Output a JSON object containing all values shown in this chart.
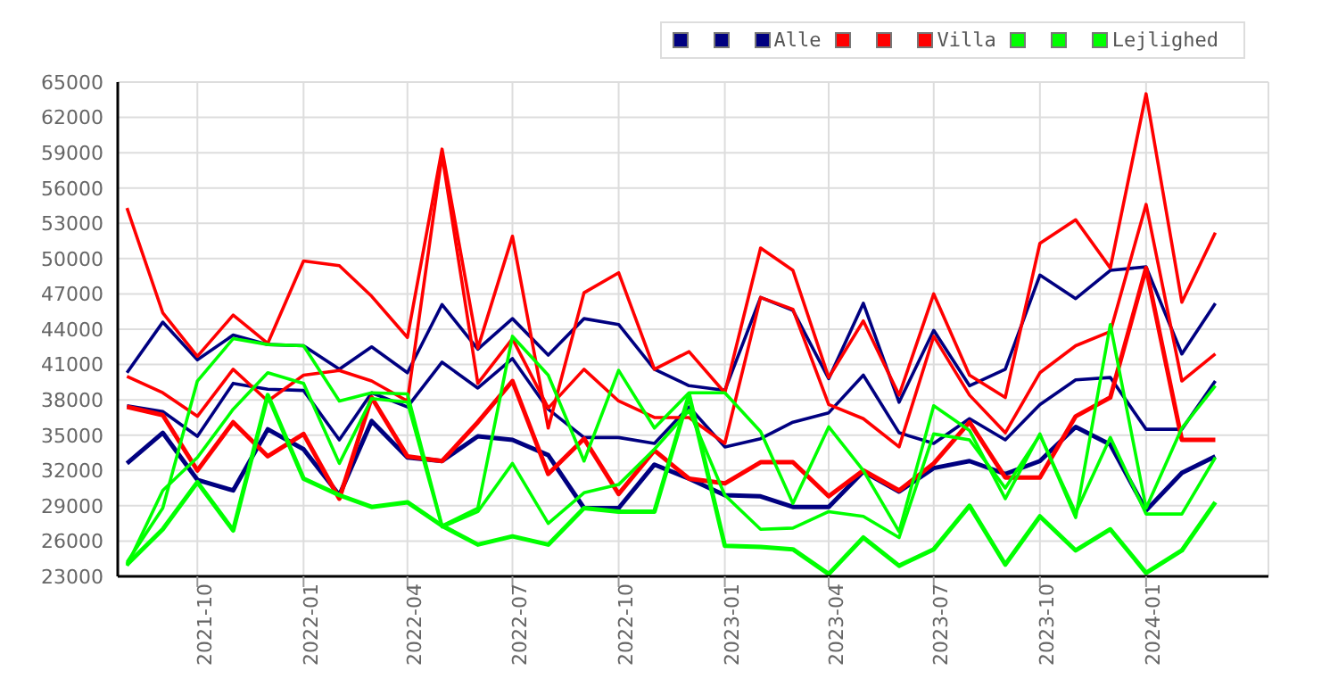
{
  "chart_data": {
    "type": "line",
    "x": [
      "2021-08",
      "2021-09",
      "2021-10",
      "2021-11",
      "2021-12",
      "2022-01",
      "2022-02",
      "2022-03",
      "2022-04",
      "2022-05",
      "2022-06",
      "2022-07",
      "2022-08",
      "2022-09",
      "2022-10",
      "2022-11",
      "2022-12",
      "2023-01",
      "2023-02",
      "2023-03",
      "2023-04",
      "2023-05",
      "2023-06",
      "2023-07",
      "2023-08",
      "2023-09",
      "2023-10",
      "2023-11",
      "2023-12",
      "2024-01",
      "2024-02",
      "2024-03"
    ],
    "series": [
      {
        "name": null,
        "color": "#000080",
        "values": [
          40300,
          44600,
          41400,
          43500,
          42700,
          42600,
          40600,
          42500,
          40300,
          46100,
          42300,
          44900,
          41800,
          44900,
          44400,
          40600,
          39200,
          38800,
          46700,
          45600,
          39800,
          46200,
          37800,
          43900,
          39200,
          40600,
          48600,
          46600,
          49000,
          49300,
          41900,
          46200
        ]
      },
      {
        "name": null,
        "color": "#000080",
        "values": [
          37500,
          37000,
          34900,
          39400,
          38900,
          38800,
          34600,
          38600,
          37400,
          41200,
          39000,
          41500,
          37200,
          34800,
          34800,
          34300,
          37400,
          34000,
          34700,
          36100,
          36900,
          40100,
          35200,
          34300,
          36400,
          34600,
          37600,
          39700,
          39900,
          35500,
          35500,
          39600
        ]
      },
      {
        "name": "Alle",
        "color": "#000080",
        "values": [
          32600,
          35200,
          31200,
          30300,
          35500,
          33800,
          29900,
          36200,
          33100,
          32800,
          34900,
          34600,
          33300,
          28800,
          28800,
          32500,
          31300,
          29900,
          29800,
          28900,
          28900,
          31900,
          30200,
          32200,
          32800,
          31700,
          32800,
          35700,
          34200,
          28600,
          31800,
          33200
        ]
      },
      {
        "name": null,
        "color": "#ff0000",
        "values": [
          54300,
          45400,
          41700,
          45200,
          42800,
          49800,
          49400,
          46800,
          43300,
          59300,
          42400,
          51900,
          35600,
          47100,
          48800,
          40600,
          42100,
          38600,
          50900,
          49000,
          39900,
          44700,
          38400,
          47000,
          40100,
          38200,
          51300,
          53300,
          49200,
          64000,
          46300,
          52200
        ]
      },
      {
        "name": null,
        "color": "#ff0000",
        "values": [
          40000,
          38600,
          36600,
          40600,
          37900,
          40100,
          40500,
          39600,
          37900,
          58800,
          39400,
          43200,
          37300,
          40600,
          37900,
          36500,
          36500,
          34300,
          46700,
          45700,
          37600,
          36400,
          34000,
          43400,
          38400,
          35200,
          40300,
          42600,
          43800,
          54600,
          39600,
          41900
        ]
      },
      {
        "name": "Villa",
        "color": "#ff0000",
        "values": [
          37400,
          36700,
          32000,
          36100,
          33200,
          35100,
          29600,
          38200,
          33200,
          32800,
          36100,
          39600,
          31700,
          34700,
          30000,
          33700,
          31300,
          30900,
          32700,
          32700,
          29800,
          32000,
          30300,
          32600,
          36100,
          31400,
          31400,
          36600,
          38200,
          49200,
          34600,
          34600
        ]
      },
      {
        "name": null,
        "color": "#00ff00",
        "values": [
          24200,
          28800,
          39600,
          43200,
          42700,
          42600,
          37900,
          38600,
          38500,
          27300,
          28800,
          43400,
          40100,
          32800,
          40500,
          35600,
          38600,
          38600,
          35300,
          29200,
          35700,
          32000,
          26800,
          37500,
          35400,
          29600,
          35100,
          28000,
          44400,
          28800,
          35600,
          39200
        ]
      },
      {
        "name": null,
        "color": "#00ff00",
        "values": [
          23900,
          30300,
          33100,
          37200,
          40300,
          39400,
          32600,
          38100,
          37800,
          27200,
          28500,
          32600,
          27500,
          30100,
          30800,
          33800,
          37100,
          29900,
          27000,
          27100,
          28500,
          28100,
          26300,
          35100,
          34600,
          30500,
          35000,
          28400,
          34800,
          28300,
          28300,
          33100
        ]
      },
      {
        "name": "Lejlighed",
        "color": "#00ff00",
        "values": [
          24000,
          27000,
          31000,
          26900,
          38400,
          31300,
          29900,
          28900,
          29300,
          27300,
          25700,
          26400,
          25700,
          28800,
          28500,
          28500,
          38400,
          25600,
          25500,
          25300,
          23200,
          26300,
          23900,
          25300,
          29000,
          24000,
          28100,
          25200,
          27000,
          23300,
          25200,
          29300
        ]
      }
    ],
    "xlim": [
      "2021-07-24",
      "2024-04-16"
    ],
    "xticks": [
      "2021-10",
      "2022-01",
      "2022-04",
      "2022-07",
      "2022-10",
      "2023-01",
      "2023-04",
      "2023-07",
      "2023-10",
      "2024-01"
    ],
    "ylim": [
      23000,
      65000
    ],
    "yticks": [
      23000,
      26000,
      29000,
      32000,
      35000,
      38000,
      41000,
      44000,
      47000,
      50000,
      53000,
      56000,
      59000,
      62000,
      65000
    ],
    "grid": true,
    "legend": "top right",
    "line_style": "solid",
    "marker": "none"
  }
}
